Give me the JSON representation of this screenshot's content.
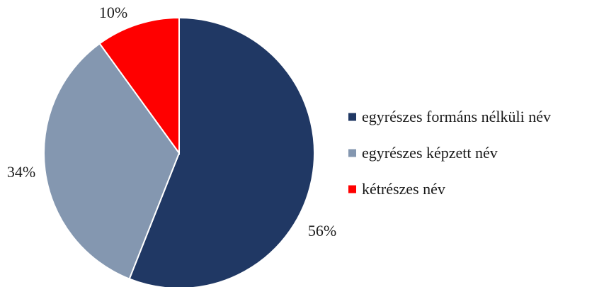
{
  "chart_data": {
    "type": "pie",
    "title": "",
    "start_angle_deg": 0,
    "direction": "clockwise",
    "slices": [
      {
        "label": "egyrészes formáns nélküli név",
        "value": 56,
        "display": "56%",
        "color": "#203864"
      },
      {
        "label": "egyrészes képzett név",
        "value": 34,
        "display": "34%",
        "color": "#8497b0"
      },
      {
        "label": "kétrészes név",
        "value": 10,
        "display": "10%",
        "color": "#ff0000"
      }
    ],
    "legend": {
      "position": "right",
      "entries": [
        "egyrészes formáns nélküli név",
        "egyrészes képzett név",
        "kétrészes név"
      ]
    }
  }
}
